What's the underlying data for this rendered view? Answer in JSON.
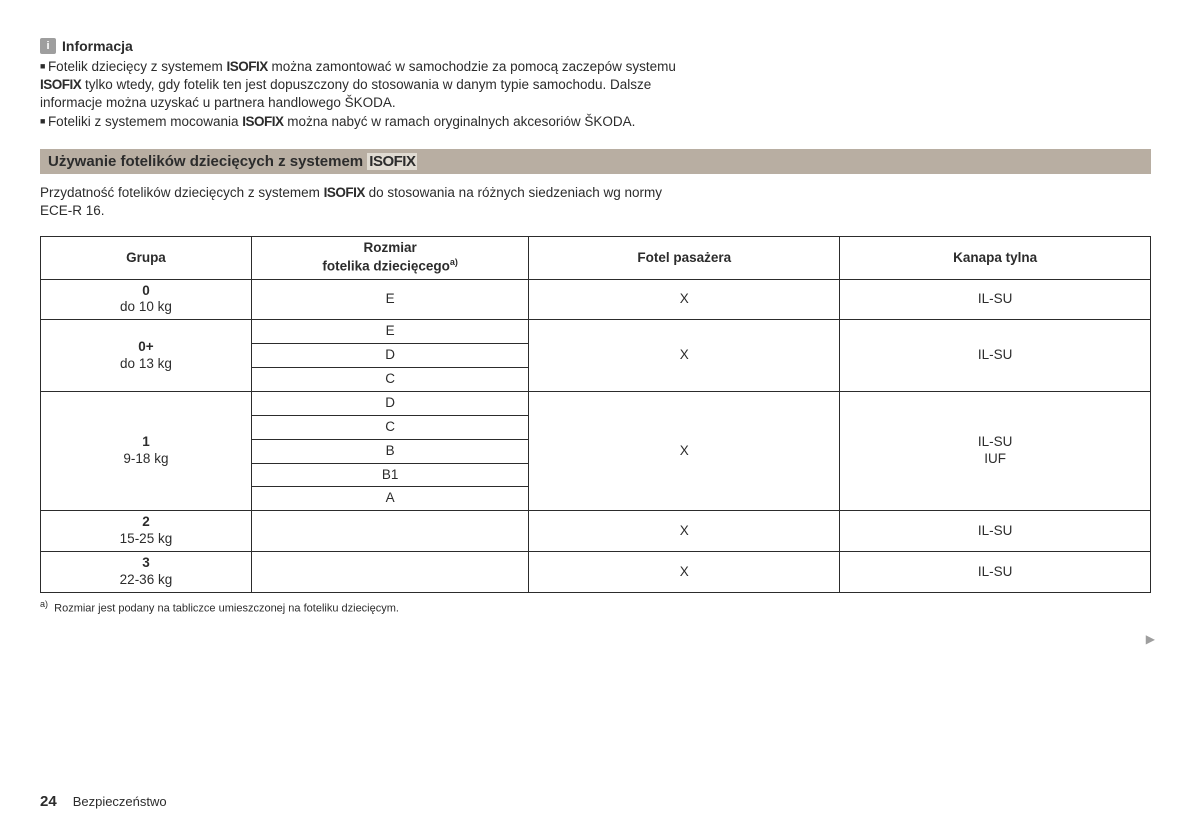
{
  "info": {
    "icon_letter": "i",
    "heading": "Informacja",
    "para1_pre": "Fotelik dziecięcy z systemem ",
    "para1_isofix": "ISOFIX",
    "para1_mid": " można zamontować w samochodzie za pomocą zaczepów systemu ",
    "para1_isofix2": "ISOFIX",
    "para1_post": " tylko wtedy, gdy fotelik ten jest dopuszczony do stosowania w danym typie samochodu. Dalsze informacje można uzyskać u partnera handlowego ŠKODA.",
    "para2_pre": "Foteliki z systemem mocowania ",
    "para2_isofix": "ISOFIX",
    "para2_post": " można nabyć w ramach oryginalnych akcesoriów ŠKODA."
  },
  "section": {
    "title_pre": "Używanie fotelików dziecięcych z systemem ",
    "title_isofix": "ISOFIX"
  },
  "intro": {
    "pre": "Przydatność fotelików dziecięcych z systemem ",
    "isofix": "ISOFIX",
    "post": " do stosowania na różnych siedzeniach wg normy ECE-R 16."
  },
  "table": {
    "headers": {
      "grupa": "Grupa",
      "rozmiar_line1": "Rozmiar",
      "rozmiar_line2": "fotelika dziecięcego",
      "rozmiar_sup": "a)",
      "fotel": "Fotel pasażera",
      "kanapa": "Kanapa tylna"
    },
    "rows": {
      "g0": {
        "label_bold": "0",
        "label_sub": "do 10 kg",
        "sizes": [
          "E"
        ],
        "fotel": "X",
        "kanapa": "IL-SU"
      },
      "g0p": {
        "label_bold": "0+",
        "label_sub": "do 13 kg",
        "sizes": [
          "E",
          "D",
          "C"
        ],
        "fotel": "X",
        "kanapa": "IL-SU"
      },
      "g1": {
        "label_bold": "1",
        "label_sub": "9-18 kg",
        "sizes": [
          "D",
          "C",
          "B",
          "B1",
          "A"
        ],
        "fotel": "X",
        "kanapa_l1": "IL-SU",
        "kanapa_l2": "IUF"
      },
      "g2": {
        "label_bold": "2",
        "label_sub": "15-25 kg",
        "sizes": [],
        "fotel": "X",
        "kanapa": "IL-SU"
      },
      "g3": {
        "label_bold": "3",
        "label_sub": "22-36 kg",
        "sizes": [],
        "fotel": "X",
        "kanapa": "IL-SU"
      }
    }
  },
  "footnote": {
    "marker": "a)",
    "text": "Rozmiar jest podany na tabliczce umieszczonej na foteliku dziecięcym."
  },
  "footer": {
    "page": "24",
    "section": "Bezpieczeństwo"
  },
  "cont_arrow": "▶"
}
